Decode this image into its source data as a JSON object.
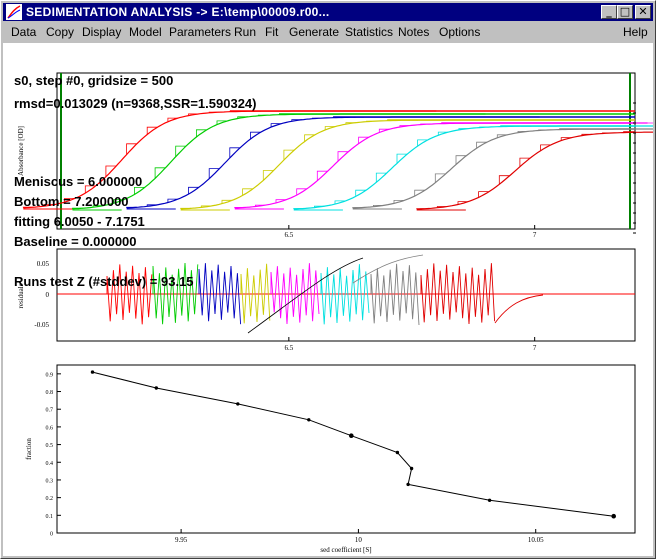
{
  "window": {
    "title": "SEDIMENTATION ANALYSIS -> E:\\temp\\00009.r00...",
    "controls": {
      "minimize": "_",
      "maximize": "□",
      "close": "✕"
    }
  },
  "menu": [
    "Data",
    "Copy",
    "Display",
    "Model",
    "Parameters",
    "Run",
    "Fit",
    "Generate",
    "Statistics",
    "Notes",
    "Options",
    "Help"
  ],
  "overlay": {
    "line1": "s0, step #0, gridsize = 500",
    "line2": "rmsd=0.013029 (n=9368,SSR=1.590324)",
    "meniscus": "Meniscus = 6.000000",
    "bottom": "Bottom = 7.200000",
    "fitting": "fitting 6.0050 - 7.1751",
    "baseline": "Baseline = 0.000000",
    "runs": "Runs test Z (#stddev) = 93.15"
  },
  "colors": {
    "scans": [
      "#ff0000",
      "#00cc00",
      "#0000c0",
      "#cccc00",
      "#ff00ff",
      "#00e0e0",
      "#808080",
      "#e00000"
    ],
    "titlebar": "#000080"
  },
  "chart_data": [
    {
      "type": "line",
      "name": "absorbance scans",
      "ylabel": "Absorbance [OD]",
      "x_ticks": [
        "6.5",
        "7"
      ],
      "scans": 8,
      "midpoints": [
        6.16,
        6.26,
        6.37,
        6.48,
        6.59,
        6.71,
        6.83,
        6.96
      ]
    },
    {
      "type": "line",
      "name": "residuals",
      "ylabel": "residuals",
      "y_ticks": [
        "0.05",
        "0",
        "-0.05"
      ],
      "x_ticks": [
        "6.5",
        "7"
      ]
    },
    {
      "type": "line",
      "name": "distribution",
      "xlabel": "sed coefficient [S]",
      "ylabel": "fraction",
      "x_ticks": [
        "9.95",
        "10",
        "10.05"
      ],
      "y_ticks": [
        "0.9",
        "0.8",
        "0.7",
        "0.6",
        "0.5",
        "0.4",
        "0.3",
        "0.2",
        "0.1",
        "0"
      ],
      "points": [
        {
          "x": 9.925,
          "y": 0.91
        },
        {
          "x": 9.943,
          "y": 0.82
        },
        {
          "x": 9.966,
          "y": 0.73
        },
        {
          "x": 9.986,
          "y": 0.64
        },
        {
          "x": 9.998,
          "y": 0.55
        },
        {
          "x": 10.011,
          "y": 0.455
        },
        {
          "x": 10.015,
          "y": 0.365
        },
        {
          "x": 10.014,
          "y": 0.275
        },
        {
          "x": 10.037,
          "y": 0.185
        },
        {
          "x": 10.072,
          "y": 0.095
        }
      ],
      "xlim": [
        9.915,
        10.078
      ],
      "ylim": [
        0,
        0.95
      ]
    }
  ]
}
